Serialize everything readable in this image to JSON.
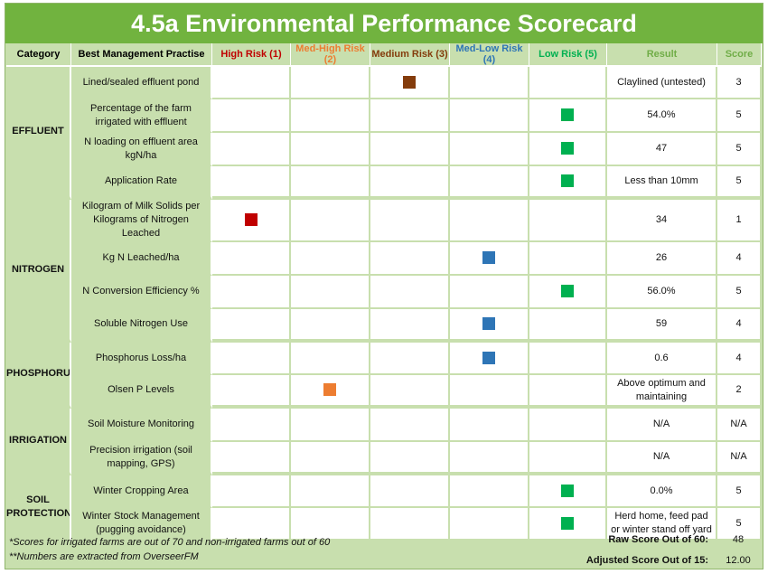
{
  "title": "4.5a Environmental Performance Scorecard",
  "headers": {
    "category": "Category",
    "bmp": "Best Management Practise",
    "risk1": "High Risk (1)",
    "risk2": "Med-High Risk (2)",
    "risk3": "Medium Risk (3)",
    "risk4": "Med-Low Risk (4)",
    "risk5": "Low Risk (5)",
    "result": "Result",
    "score": "Score"
  },
  "colors": {
    "risk1": "#c00000",
    "risk2": "#ed7d31",
    "risk3": "#843c0c",
    "risk4": "#2e75b6",
    "risk5": "#00b050",
    "result_header": "#70ad47",
    "score_header": "#70ad47",
    "title_bar": "#71b33f",
    "panel": "#c8dfae"
  },
  "categories": {
    "effluent": "EFFLUENT",
    "nitrogen": "NITROGEN",
    "phosphorus": "PHOSPHORUS",
    "irrigation": "IRRIGATION",
    "soil_protection": "SOIL PROTECTION"
  },
  "rows": [
    {
      "practice": "Lined/sealed effluent pond",
      "risk": 3,
      "result": "Claylined (untested)",
      "score": "3"
    },
    {
      "practice": "Percentage of the farm irrigated with effluent",
      "risk": 5,
      "result": "54.0%",
      "score": "5"
    },
    {
      "practice": "N loading on effluent area kgN/ha",
      "risk": 5,
      "result": "47",
      "score": "5"
    },
    {
      "practice": "Application Rate",
      "risk": 5,
      "result": "Less than 10mm",
      "score": "5"
    },
    {
      "practice": "Kilogram of Milk Solids per Kilograms of Nitrogen Leached",
      "risk": 1,
      "result": "34",
      "score": "1"
    },
    {
      "practice": "Kg N Leached/ha",
      "risk": 4,
      "result": "26",
      "score": "4"
    },
    {
      "practice": "N Conversion Efficiency %",
      "risk": 5,
      "result": "56.0%",
      "score": "5"
    },
    {
      "practice": "Soluble Nitrogen Use",
      "risk": 4,
      "result": "59",
      "score": "4"
    },
    {
      "practice": "Phosphorus Loss/ha",
      "risk": 4,
      "result": "0.6",
      "score": "4"
    },
    {
      "practice": "Olsen P Levels",
      "risk": 2,
      "result": "Above optimum and maintaining",
      "score": "2"
    },
    {
      "practice": "Soil Moisture Monitoring",
      "risk": 0,
      "result": "N/A",
      "score": "N/A"
    },
    {
      "practice": "Precision irrigation (soil mapping, GPS)",
      "risk": 0,
      "result": "N/A",
      "score": "N/A"
    },
    {
      "practice": "Winter Cropping Area",
      "risk": 5,
      "result": "0.0%",
      "score": "5"
    },
    {
      "practice": "Winter Stock Management (pugging avoidance)",
      "risk": 5,
      "result": "Herd home, feed pad or winter stand off yard",
      "score": "5"
    }
  ],
  "footer": {
    "note1": "*Scores for irrigated farms are out of 70 and non-irrigated farms out of 60",
    "note2": "**Numbers are extracted from OverseerFM",
    "raw_label": "Raw Score Out of 60:",
    "raw_value": "48",
    "adjusted_label": "Adjusted Score Out of 15:",
    "adjusted_value": "12.00"
  }
}
